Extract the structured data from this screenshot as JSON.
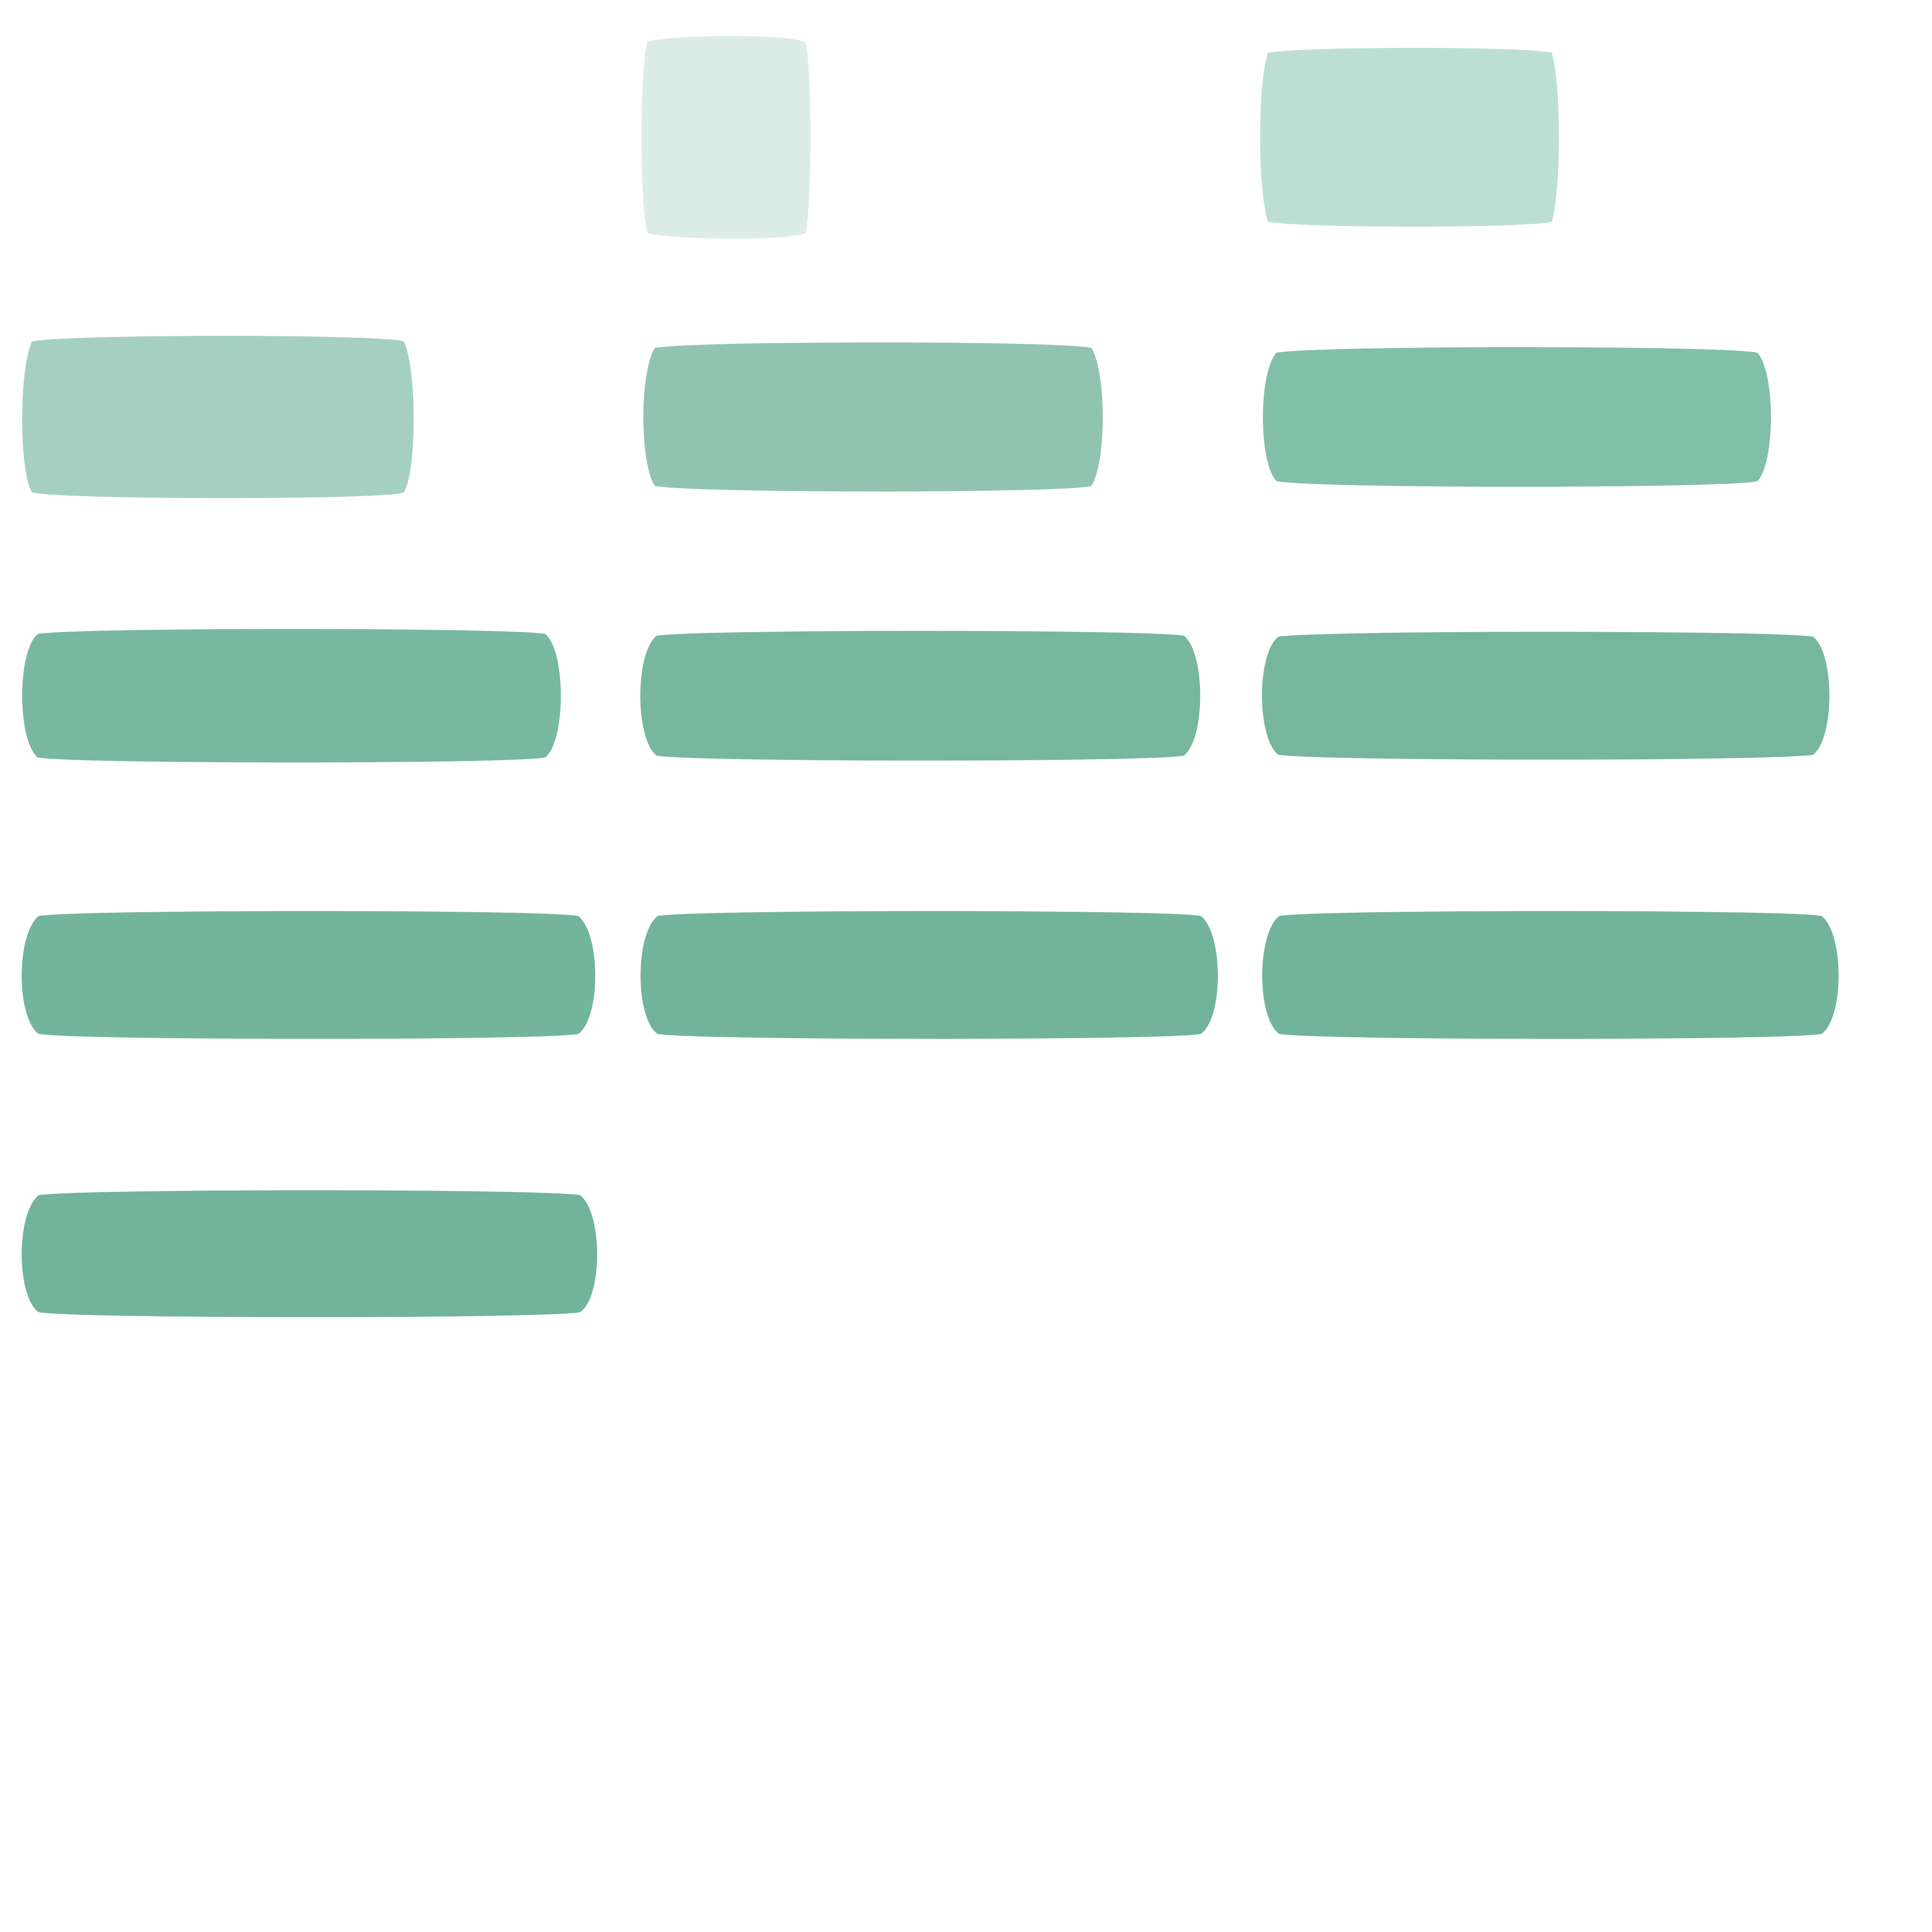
{
  "palette": {
    "background": "#ffffff",
    "tint_1": "#dcede7",
    "tint_2": "#bddfd3",
    "tint_3": "#a5d0c1",
    "tint_4": "#91c4b0",
    "tint_5": "#82bfa8",
    "tint_6": "#78b8a0",
    "tint_7": "#73b59c",
    "tint_8": "#71b39b"
  },
  "tiles": [
    {
      "id": "tile-r1-c2",
      "fill": "#dcede7"
    },
    {
      "id": "tile-r1-c3",
      "fill": "#bddfd3"
    },
    {
      "id": "tile-r2-c1",
      "fill": "#a5d0c1"
    },
    {
      "id": "tile-r2-c2",
      "fill": "#91c4b0"
    },
    {
      "id": "tile-r2-c3",
      "fill": "#82bfa8"
    },
    {
      "id": "tile-r3-c1",
      "fill": "#78b8a0"
    },
    {
      "id": "tile-r3-c2",
      "fill": "#76b79e"
    },
    {
      "id": "tile-r3-c3",
      "fill": "#75b69d"
    },
    {
      "id": "tile-r4-c1",
      "fill": "#73b59c"
    },
    {
      "id": "tile-r4-c2",
      "fill": "#72b49b"
    },
    {
      "id": "tile-r4-c3",
      "fill": "#72b49b"
    },
    {
      "id": "tile-r5-c1",
      "fill": "#71b39b"
    }
  ]
}
